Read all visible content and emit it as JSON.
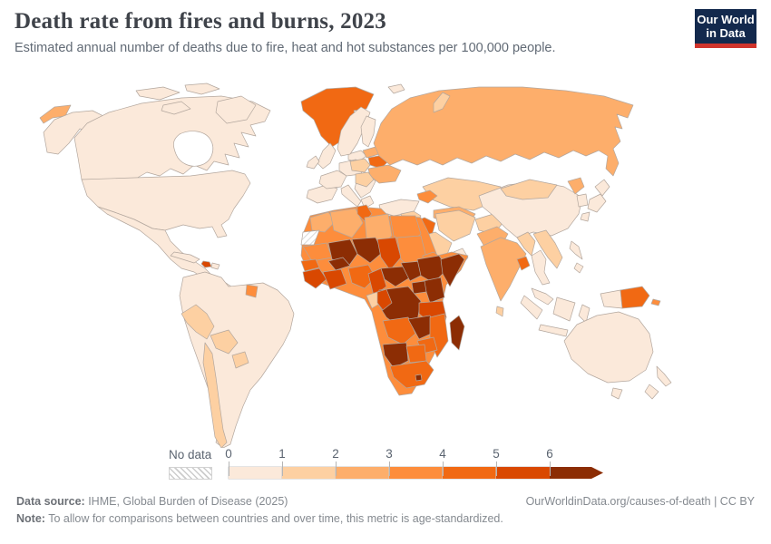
{
  "header": {
    "title": "Death rate from fires and burns, 2023",
    "subtitle": "Estimated annual number of deaths due to fire, heat and hot substances per 100,000 people.",
    "logo": {
      "line1": "Our World",
      "line2": "in Data",
      "bg_color": "#13294d",
      "accent_color": "#d0342c"
    }
  },
  "footer": {
    "sources_label": "Data source:",
    "sources": " IHME, Global Burden of Disease (2025)",
    "link": "OurWorldinData.org/causes-of-death | CC BY",
    "note_label": "Note:",
    "note": " To allow for comparisons between countries and over time, this metric is age-standardized."
  },
  "chart_data": {
    "type": "choropleth_map",
    "title": "Death rate from fires and burns, 2023",
    "metric": "deaths per 100,000 people",
    "legend": {
      "no_data_label": "No data",
      "ticks": [
        "0",
        "1",
        "2",
        "3",
        "4",
        "5",
        "6"
      ],
      "bin_colors": [
        "#fbe9da",
        "#fdd0a2",
        "#fdae6b",
        "#fd8d3c",
        "#f16913",
        "#d94801",
        "#8c2d04"
      ],
      "last_bin_open_ended": true,
      "no_data_pattern": "diagonal-hatch"
    },
    "regions": {
      "alaska": {
        "name": "United States (Alaska)",
        "color": "#fbe9da"
      },
      "chukotka": {
        "name": "Russia (Chukotka)",
        "color": "#fdae6b"
      },
      "canada": {
        "name": "Canada",
        "color": "#fbe9da"
      },
      "arctic-islands": {
        "name": "Canadian Arctic islands",
        "color": "#fbe9da"
      },
      "baffin": {
        "name": "Baffin Island (Canada)",
        "color": "#fbe9da"
      },
      "greenland": {
        "name": "Greenland",
        "color": "#f16913"
      },
      "iceland": {
        "name": "Iceland",
        "color": "#fbe9da"
      },
      "usa": {
        "name": "United States",
        "color": "#fbe9da"
      },
      "mexico": {
        "name": "Mexico",
        "color": "#fbe9da"
      },
      "central-america": {
        "name": "Central America",
        "color": "#fbe9da"
      },
      "cuba": {
        "name": "Cuba",
        "color": "#fbe9da"
      },
      "haiti": {
        "name": "Haiti",
        "color": "#d94801"
      },
      "dominican-republic": {
        "name": "Dominican Republic",
        "color": "#fbe9da"
      },
      "south-america-base": {
        "name": "South America (Brazil, Argentina, Colombia, Venezuela)",
        "color": "#fbe9da"
      },
      "peru": {
        "name": "Peru",
        "color": "#fdd0a2"
      },
      "bolivia": {
        "name": "Bolivia",
        "color": "#fdd0a2"
      },
      "paraguay": {
        "name": "Paraguay",
        "color": "#fdd0a2"
      },
      "chile": {
        "name": "Chile",
        "color": "#fdd0a2"
      },
      "guyana": {
        "name": "Guyana",
        "color": "#fd8d3c"
      },
      "uk": {
        "name": "United Kingdom",
        "color": "#fbe9da"
      },
      "ireland": {
        "name": "Ireland",
        "color": "#fbe9da"
      },
      "iberia": {
        "name": "Spain & Portugal",
        "color": "#fbe9da"
      },
      "france": {
        "name": "France",
        "color": "#fbe9da"
      },
      "central-europe": {
        "name": "Germany & Central Europe",
        "color": "#fbe9da"
      },
      "italy": {
        "name": "Italy",
        "color": "#fbe9da"
      },
      "balkans": {
        "name": "Balkans",
        "color": "#fbe9da"
      },
      "greece": {
        "name": "Greece",
        "color": "#fbe9da"
      },
      "scandinavia": {
        "name": "Norway & Sweden",
        "color": "#fbe9da"
      },
      "finland": {
        "name": "Finland",
        "color": "#fbe9da"
      },
      "svalbard": {
        "name": "Svalbard",
        "color": "#fbe9da"
      },
      "baltics": {
        "name": "Baltic states",
        "color": "#fdae6b"
      },
      "belarus": {
        "name": "Belarus",
        "color": "#f16913"
      },
      "poland": {
        "name": "Poland",
        "color": "#fdd0a2"
      },
      "ukraine": {
        "name": "Ukraine",
        "color": "#fdae6b"
      },
      "romania": {
        "name": "Romania & Hungary",
        "color": "#fdd0a2"
      },
      "turkey": {
        "name": "Turkey",
        "color": "#fbe9da"
      },
      "russia": {
        "name": "Russia",
        "color": "#fdae6b"
      },
      "novaya-zemlya": {
        "name": "Novaya Zemlya (Russia)",
        "color": "#fdd0a2"
      },
      "kazakhstan": {
        "name": "Kazakhstan",
        "color": "#fdd0a2"
      },
      "central-asia": {
        "name": "Uzbekistan & Turkmenistan",
        "color": "#fdae6b"
      },
      "caucasus": {
        "name": "Caucasus",
        "color": "#fd8d3c"
      },
      "syria": {
        "name": "Syria",
        "color": "#fdd0a2"
      },
      "iraq": {
        "name": "Iraq",
        "color": "#f16913"
      },
      "iran": {
        "name": "Iran",
        "color": "#fdd0a2"
      },
      "afghanistan": {
        "name": "Afghanistan",
        "color": "#fdd0a2"
      },
      "pakistan": {
        "name": "Pakistan",
        "color": "#fdae6b"
      },
      "saudi-arabia": {
        "name": "Saudi Arabia",
        "color": "#fdd0a2"
      },
      "yemen": {
        "name": "Yemen",
        "color": "#fd8d3c"
      },
      "oman": {
        "name": "Oman",
        "color": "#fbe9da"
      },
      "india": {
        "name": "India",
        "color": "#fdae6b"
      },
      "bangladesh": {
        "name": "Bangladesh",
        "color": "#f16913"
      },
      "sri-lanka": {
        "name": "Sri Lanka",
        "color": "#fdd0a2"
      },
      "china": {
        "name": "China",
        "color": "#fbe9da"
      },
      "mongolia": {
        "name": "Mongolia",
        "color": "#fdd0a2"
      },
      "north-korea": {
        "name": "North Korea",
        "color": "#fdae6b"
      },
      "south-korea": {
        "name": "South Korea",
        "color": "#fbe9da"
      },
      "japan": {
        "name": "Japan",
        "color": "#fbe9da"
      },
      "myanmar": {
        "name": "Myanmar",
        "color": "#fdd0a2"
      },
      "laos-vietnam": {
        "name": "Laos & Vietnam",
        "color": "#fdd0a2"
      },
      "thailand": {
        "name": "Thailand",
        "color": "#fbe9da"
      },
      "malaysia": {
        "name": "Malaysia",
        "color": "#fbe9da"
      },
      "indonesia": {
        "name": "Indonesia",
        "color": "#fbe9da"
      },
      "philippines": {
        "name": "Philippines",
        "color": "#fbe9da"
      },
      "papua-new-guinea": {
        "name": "Papua New Guinea",
        "color": "#f16913"
      },
      "solomon-islands": {
        "name": "Solomon Islands",
        "color": "#fd8d3c"
      },
      "australia": {
        "name": "Australia",
        "color": "#fbe9da"
      },
      "tasmania": {
        "name": "Tasmania (Australia)",
        "color": "#fbe9da"
      },
      "new-zealand": {
        "name": "New Zealand",
        "color": "#fbe9da"
      },
      "africa-other": {
        "name": "Africa (other)",
        "color": "#fd8d3c"
      },
      "morocco": {
        "name": "Morocco",
        "color": "#fdae6b"
      },
      "western-sahara": {
        "name": "Western Sahara",
        "color": "no-data"
      },
      "algeria": {
        "name": "Algeria",
        "color": "#fdae6b"
      },
      "tunisia": {
        "name": "Tunisia",
        "color": "#f16913"
      },
      "libya": {
        "name": "Libya",
        "color": "#fdae6b"
      },
      "egypt": {
        "name": "Egypt",
        "color": "#fd8d3c"
      },
      "mauritania": {
        "name": "Mauritania",
        "color": "#fd8d3c"
      },
      "mali": {
        "name": "Mali",
        "color": "#8c2d04"
      },
      "niger": {
        "name": "Niger",
        "color": "#8c2d04"
      },
      "chad": {
        "name": "Chad",
        "color": "#d94801"
      },
      "sudan": {
        "name": "Sudan",
        "color": "#fd8d3c"
      },
      "eritrea": {
        "name": "Eritrea & Djibouti",
        "color": "#fd8d3c"
      },
      "senegal": {
        "name": "Senegal & Gambia",
        "color": "#f16913"
      },
      "guinea": {
        "name": "Guinea & Sierra Leone",
        "color": "#d94801"
      },
      "cote-divoire": {
        "name": "Côte d'Ivoire & Ghana",
        "color": "#d94801"
      },
      "burkina-faso": {
        "name": "Burkina Faso",
        "color": "#8c2d04"
      },
      "nigeria": {
        "name": "Nigeria",
        "color": "#f16913"
      },
      "cameroon": {
        "name": "Cameroon",
        "color": "#d94801"
      },
      "central-african-republic": {
        "name": "Central African Republic",
        "color": "#8c2d04"
      },
      "south-sudan": {
        "name": "South Sudan",
        "color": "#8c2d04"
      },
      "ethiopia": {
        "name": "Ethiopia",
        "color": "#8c2d04"
      },
      "somalia": {
        "name": "Somalia",
        "color": "#8c2d04"
      },
      "kenya": {
        "name": "Kenya",
        "color": "#8c2d04"
      },
      "uganda": {
        "name": "Uganda",
        "color": "#8c2d04"
      },
      "drc": {
        "name": "Democratic Republic of Congo",
        "color": "#8c2d04"
      },
      "gabon": {
        "name": "Gabon",
        "color": "#fdd0a2"
      },
      "congo": {
        "name": "Congo",
        "color": "#d94801"
      },
      "tanzania": {
        "name": "Tanzania",
        "color": "#d94801"
      },
      "angola": {
        "name": "Angola",
        "color": "#f16913"
      },
      "zambia": {
        "name": "Zambia",
        "color": "#8c2d04"
      },
      "mozambique": {
        "name": "Mozambique & Malawi",
        "color": "#f16913"
      },
      "zimbabwe": {
        "name": "Zimbabwe",
        "color": "#f16913"
      },
      "namibia": {
        "name": "Namibia",
        "color": "#8c2d04"
      },
      "botswana": {
        "name": "Botswana",
        "color": "#f16913"
      },
      "south-africa": {
        "name": "South Africa",
        "color": "#f16913"
      },
      "lesotho": {
        "name": "Lesotho",
        "color": "#8c2d04"
      },
      "madagascar": {
        "name": "Madagascar",
        "color": "#8c2d04"
      }
    }
  }
}
